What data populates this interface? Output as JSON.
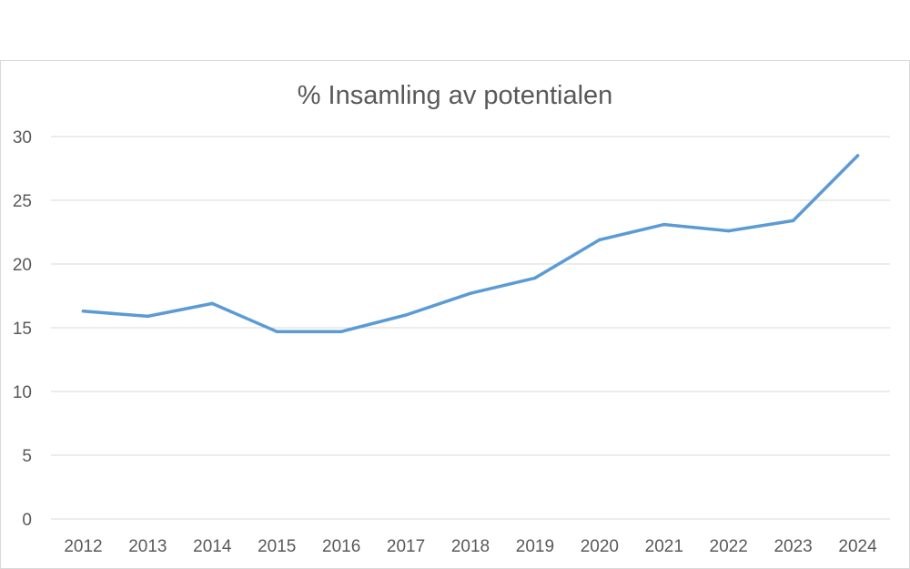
{
  "chart_data": {
    "type": "line",
    "title": "% Insamling av potentialen",
    "xlabel": "",
    "ylabel": "",
    "categories": [
      "2012",
      "2013",
      "2014",
      "2015",
      "2016",
      "2017",
      "2018",
      "2019",
      "2020",
      "2021",
      "2022",
      "2023",
      "2024"
    ],
    "series": [
      {
        "values": [
          16.3,
          15.9,
          16.9,
          14.7,
          14.7,
          16.0,
          17.7,
          18.9,
          21.9,
          23.1,
          22.6,
          23.4,
          28.5
        ],
        "color": "#5b9bd5"
      }
    ],
    "ylim": [
      0,
      30
    ],
    "yticks": [
      0,
      5,
      10,
      15,
      20,
      25,
      30
    ],
    "grid": true,
    "legend": "none"
  }
}
